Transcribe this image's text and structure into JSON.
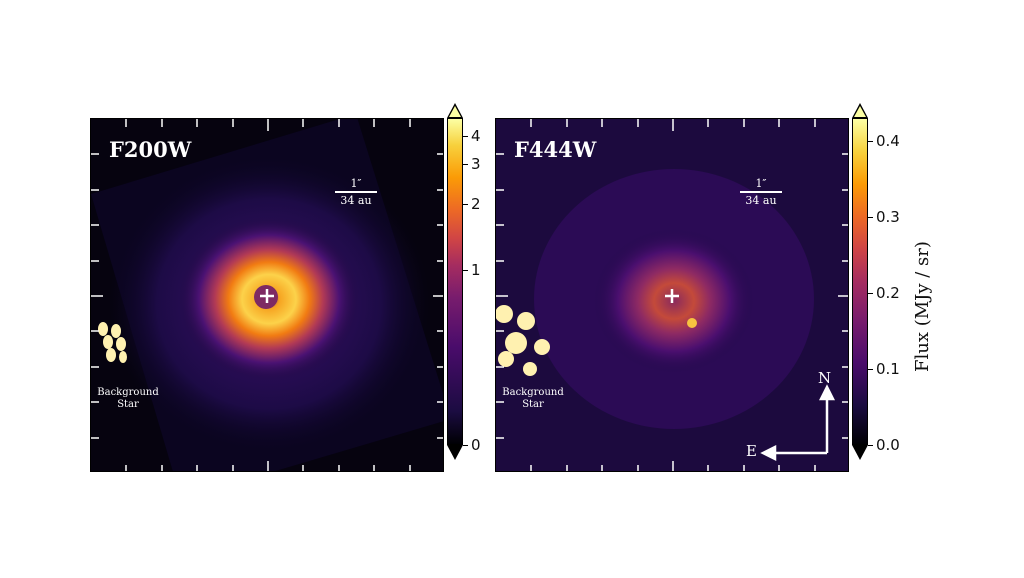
{
  "panels": [
    {
      "filter": "F200W",
      "scalebar": {
        "angle": "1″",
        "distance": "34 au"
      },
      "background_label": [
        "Background",
        "Star"
      ],
      "colorbar": {
        "ticks": [
          "4",
          "3",
          "2",
          "1",
          "0"
        ],
        "tick_values": [
          4,
          3,
          2,
          1,
          0
        ],
        "scale": "asinh"
      }
    },
    {
      "filter": "F444W",
      "scalebar": {
        "angle": "1″",
        "distance": "34 au"
      },
      "background_label": [
        "Background",
        "Star"
      ],
      "compass": {
        "north": "N",
        "east": "E"
      },
      "colorbar": {
        "ticks": [
          "0.4",
          "0.3",
          "0.2",
          "0.1",
          "0.0"
        ],
        "tick_values": [
          0.4,
          0.3,
          0.2,
          0.1,
          0.0
        ],
        "scale": "linear",
        "unit_label": "Flux (MJy / sr)"
      }
    }
  ],
  "colormap": "inferno",
  "colors": {
    "hot": "#fcffa4",
    "orange": "#f98e09",
    "red": "#bc3754",
    "purple": "#57106e",
    "dark": "#000004"
  }
}
